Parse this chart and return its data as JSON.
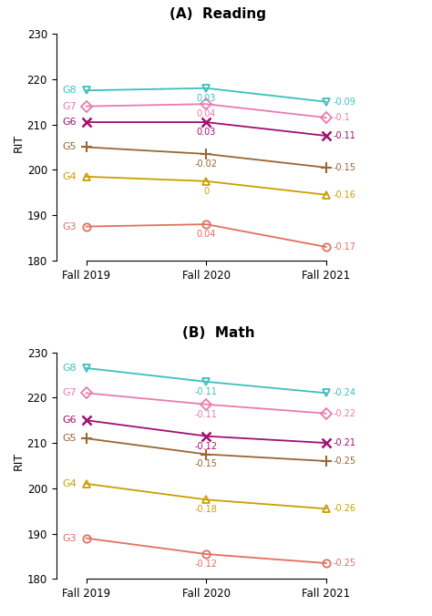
{
  "reading": {
    "title": "(A)  Reading",
    "grades": [
      "G8",
      "G7",
      "G6",
      "G5",
      "G4",
      "G3"
    ],
    "colors": [
      "#3DBFBF",
      "#E87CB0",
      "#A01070",
      "#996633",
      "#C8A000",
      "#E07060"
    ],
    "markers": [
      "v",
      "D",
      "x",
      "+",
      "^",
      "o"
    ],
    "fall2019": [
      217.5,
      214.0,
      210.5,
      205.0,
      198.5,
      187.5
    ],
    "fall2020": [
      218.0,
      214.5,
      210.5,
      203.5,
      197.5,
      188.0
    ],
    "fall2021": [
      215.0,
      211.5,
      207.5,
      200.5,
      194.5,
      183.0
    ],
    "label2020": [
      "0.03",
      "0.04",
      "0.03",
      "-0.02",
      "0",
      "0.04"
    ],
    "label2021": [
      "-0.09",
      "-0.1",
      "-0.11",
      "-0.15",
      "-0.16",
      "-0.17"
    ]
  },
  "math": {
    "title": "(B)  Math",
    "grades": [
      "G8",
      "G7",
      "G6",
      "G5",
      "G4",
      "G3"
    ],
    "colors": [
      "#3DBFBF",
      "#E87CB0",
      "#A01070",
      "#996633",
      "#C8A000",
      "#E07060"
    ],
    "markers": [
      "v",
      "D",
      "x",
      "+",
      "^",
      "o"
    ],
    "fall2019": [
      226.5,
      221.0,
      215.0,
      211.0,
      201.0,
      189.0
    ],
    "fall2020": [
      223.5,
      218.5,
      211.5,
      207.5,
      197.5,
      185.5
    ],
    "fall2021": [
      221.0,
      216.5,
      210.0,
      206.0,
      195.5,
      183.5
    ],
    "label2020": [
      "-0.11",
      "-0.11",
      "-0.12",
      "-0.15",
      "-0.18",
      "-0.12"
    ],
    "label2021": [
      "-0.24",
      "-0.22",
      "-0.21",
      "-0.25",
      "-0.26",
      "-0.25"
    ]
  },
  "ylim": [
    180,
    232
  ],
  "yticks": [
    180,
    190,
    200,
    210,
    220,
    230
  ],
  "xticks": [
    0,
    1,
    2
  ],
  "xticklabels": [
    "Fall 2019",
    "Fall 2020",
    "Fall 2021"
  ],
  "ylabel": "RIT"
}
